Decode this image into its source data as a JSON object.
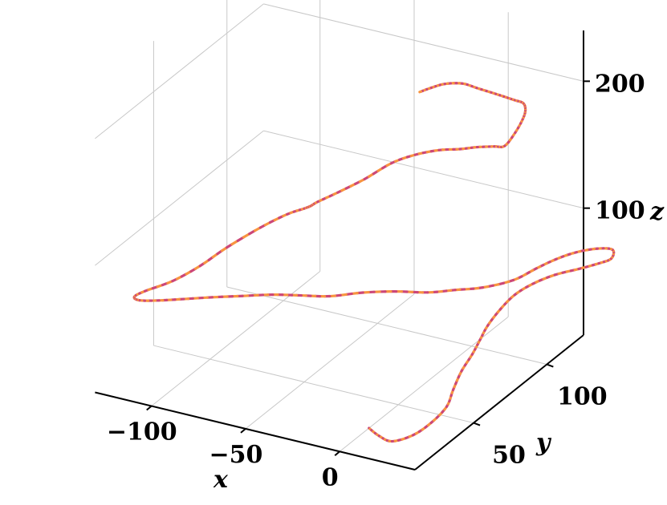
{
  "chart_data": {
    "type": "line",
    "projection": "3d",
    "title": "",
    "xlabel": "x",
    "ylabel": "y",
    "zlabel": "z",
    "xlim": [
      -130,
      40
    ],
    "ylim": [
      10,
      125
    ],
    "zlim": [
      0,
      240
    ],
    "x_ticks": [
      {
        "value": -100,
        "label": "−100"
      },
      {
        "value": -50,
        "label": "−50"
      },
      {
        "value": 0,
        "label": "0"
      }
    ],
    "y_ticks": [
      {
        "value": 50,
        "label": "50"
      },
      {
        "value": 100,
        "label": "100"
      }
    ],
    "z_ticks": [
      {
        "value": 100,
        "label": "100"
      },
      {
        "value": 200,
        "label": "200"
      }
    ],
    "grid": true,
    "colormap": [
      "#0d0887",
      "#7e03a8",
      "#cc4778",
      "#f89540",
      "#f0f921"
    ],
    "series": [
      {
        "points": [
          [
            0,
            30,
            0
          ],
          [
            10,
            24,
            3
          ],
          [
            20,
            20,
            6
          ],
          [
            28,
            24,
            10
          ],
          [
            33,
            30,
            16
          ],
          [
            35,
            38,
            22
          ],
          [
            33,
            45,
            28
          ],
          [
            32,
            52,
            36
          ],
          [
            33,
            58,
            44
          ],
          [
            34,
            62,
            52
          ],
          [
            35,
            66,
            60
          ],
          [
            37,
            72,
            68
          ],
          [
            40,
            78,
            75
          ],
          [
            45,
            84,
            80
          ],
          [
            52,
            90,
            84
          ],
          [
            60,
            96,
            86
          ],
          [
            66,
            102,
            87
          ],
          [
            68,
            108,
            86
          ],
          [
            64,
            114,
            86
          ],
          [
            56,
            114,
            84
          ],
          [
            48,
            110,
            82
          ],
          [
            42,
            104,
            80
          ],
          [
            36,
            98,
            76
          ],
          [
            30,
            90,
            72
          ],
          [
            20,
            82,
            70
          ],
          [
            10,
            76,
            70
          ],
          [
            0,
            70,
            70
          ],
          [
            -12,
            64,
            72
          ],
          [
            -25,
            58,
            72
          ],
          [
            -38,
            52,
            70
          ],
          [
            -50,
            48,
            70
          ],
          [
            -62,
            44,
            70
          ],
          [
            -75,
            40,
            68
          ],
          [
            -88,
            36,
            66
          ],
          [
            -100,
            32,
            64
          ],
          [
            -110,
            28,
            63
          ],
          [
            -118,
            25,
            63
          ],
          [
            -120,
            24,
            66
          ],
          [
            -116,
            26,
            70
          ],
          [
            -106,
            32,
            76
          ],
          [
            -96,
            38,
            86
          ],
          [
            -88,
            46,
            96
          ],
          [
            -78,
            56,
            106
          ],
          [
            -70,
            64,
            112
          ],
          [
            -64,
            68,
            115
          ],
          [
            -62,
            70,
            116
          ],
          [
            -60,
            72,
            118
          ],
          [
            -54,
            78,
            122
          ],
          [
            -46,
            86,
            128
          ],
          [
            -38,
            94,
            136
          ],
          [
            -30,
            100,
            140
          ],
          [
            -22,
            106,
            141
          ],
          [
            -14,
            110,
            141
          ],
          [
            -8,
            114,
            141
          ],
          [
            -2,
            118,
            140
          ],
          [
            2,
            120,
            140
          ],
          [
            6,
            122,
            150
          ],
          [
            10,
            122,
            162
          ],
          [
            13,
            120,
            172
          ],
          [
            15,
            116,
            182
          ],
          [
            15,
            110,
            190
          ],
          [
            14,
            104,
            198
          ],
          [
            12,
            98,
            206
          ],
          [
            9,
            92,
            214
          ],
          [
            6,
            86,
            222
          ],
          [
            3,
            78,
            228
          ],
          [
            2,
            70,
            232
          ],
          [
            2,
            62,
            236
          ]
        ]
      }
    ]
  }
}
